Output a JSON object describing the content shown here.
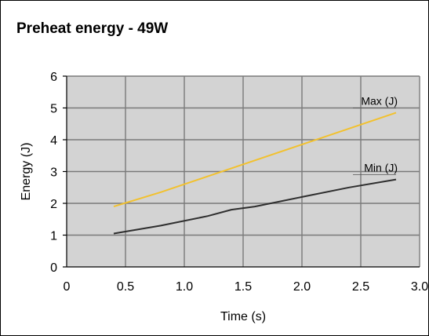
{
  "chart_data": {
    "type": "line",
    "title": "Preheat energy - 49W",
    "xlabel": "Time (s)",
    "ylabel": "Energy (J)",
    "xlim": [
      0,
      3.0
    ],
    "ylim": [
      0,
      6
    ],
    "xticks": [
      0,
      0.5,
      1.0,
      1.5,
      2.0,
      2.5,
      3.0
    ],
    "xtick_labels": [
      "0",
      "0.5",
      "1.0",
      "1.5",
      "2.0",
      "2.5",
      "3.0"
    ],
    "yticks": [
      0,
      1,
      2,
      3,
      4,
      5,
      6
    ],
    "ytick_labels": [
      "0",
      "1",
      "2",
      "3",
      "4",
      "5",
      "6"
    ],
    "grid": true,
    "plot_background": "#d3d3d3",
    "grid_color": "#7a7a7a",
    "series": [
      {
        "name": "Max (J)",
        "color": "#f2c12e",
        "x": [
          0.4,
          0.8,
          1.2,
          1.6,
          2.0,
          2.4,
          2.8
        ],
        "y": [
          1.9,
          2.35,
          2.85,
          3.35,
          3.85,
          4.35,
          4.85
        ]
      },
      {
        "name": "Min (J)",
        "color": "#2e2e2e",
        "x": [
          0.4,
          0.8,
          1.2,
          1.4,
          1.6,
          2.0,
          2.4,
          2.8
        ],
        "y": [
          1.05,
          1.3,
          1.6,
          1.8,
          1.9,
          2.2,
          2.5,
          2.75
        ]
      }
    ]
  }
}
